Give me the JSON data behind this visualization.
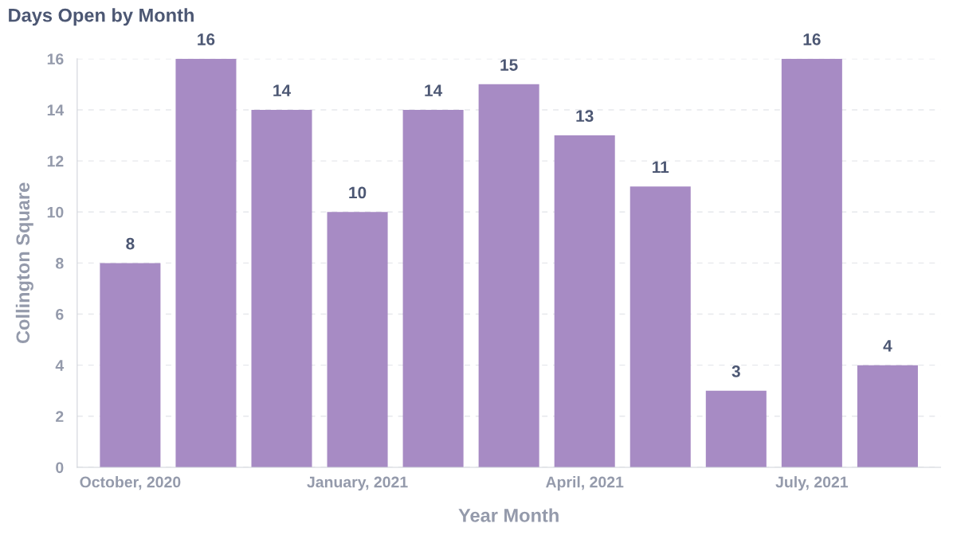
{
  "chart_data": {
    "type": "bar",
    "title": "Days Open by Month",
    "xlabel": "Year Month",
    "ylabel": "Collington Square",
    "categories": [
      "October, 2020",
      null,
      null,
      "January, 2021",
      null,
      null,
      "April, 2021",
      null,
      null,
      "July, 2021",
      null
    ],
    "values": [
      8,
      16,
      14,
      10,
      14,
      15,
      13,
      11,
      3,
      16,
      4
    ],
    "color": "#a78bc4",
    "ylim": [
      0,
      16
    ],
    "yticks": [
      0,
      2,
      4,
      6,
      8,
      10,
      12,
      14,
      16
    ],
    "grid": "y",
    "data_labels": true
  }
}
